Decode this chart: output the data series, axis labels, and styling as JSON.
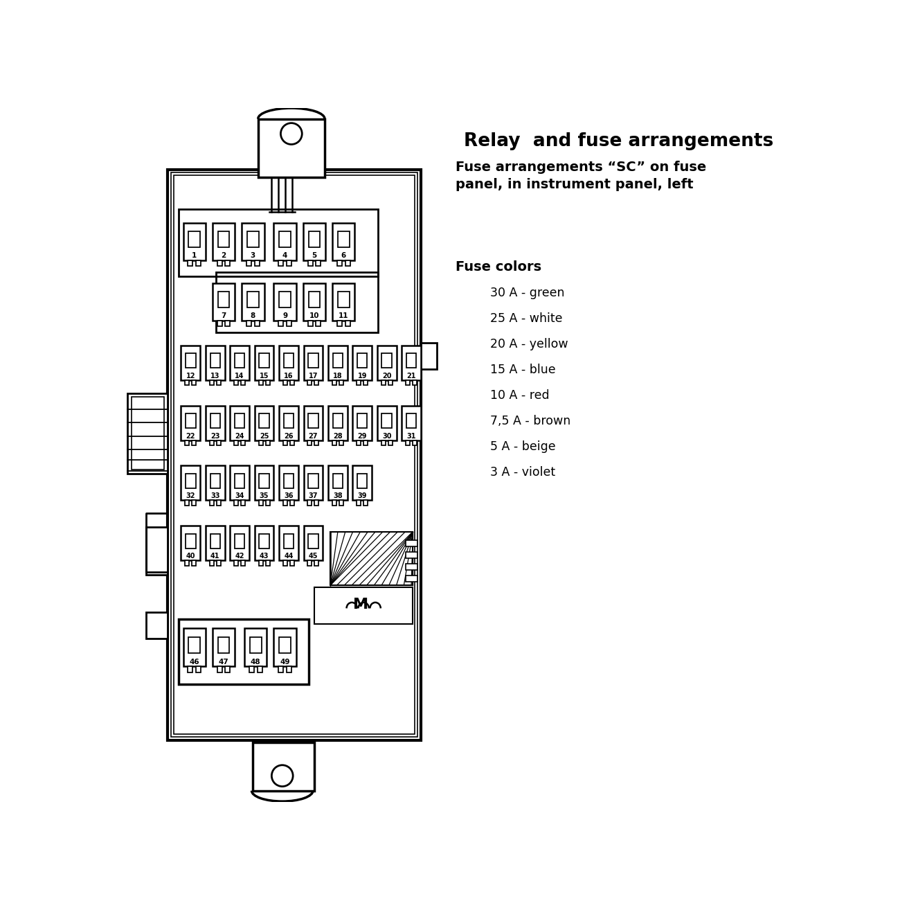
{
  "title1": "Relay  and fuse arrangements",
  "title2": "Fuse arrangements “SC” on fuse\npanel, in instrument panel, left",
  "fuse_colors_title": "Fuse colors",
  "fuse_colors": [
    "30 A - green",
    "25 A - white",
    "20 A - yellow",
    "15 A - blue",
    "10 A - red",
    "7,5 A - brown",
    "5 A - beige",
    "3 A - violet"
  ],
  "bg_color": "#ffffff",
  "line_color": "#000000"
}
